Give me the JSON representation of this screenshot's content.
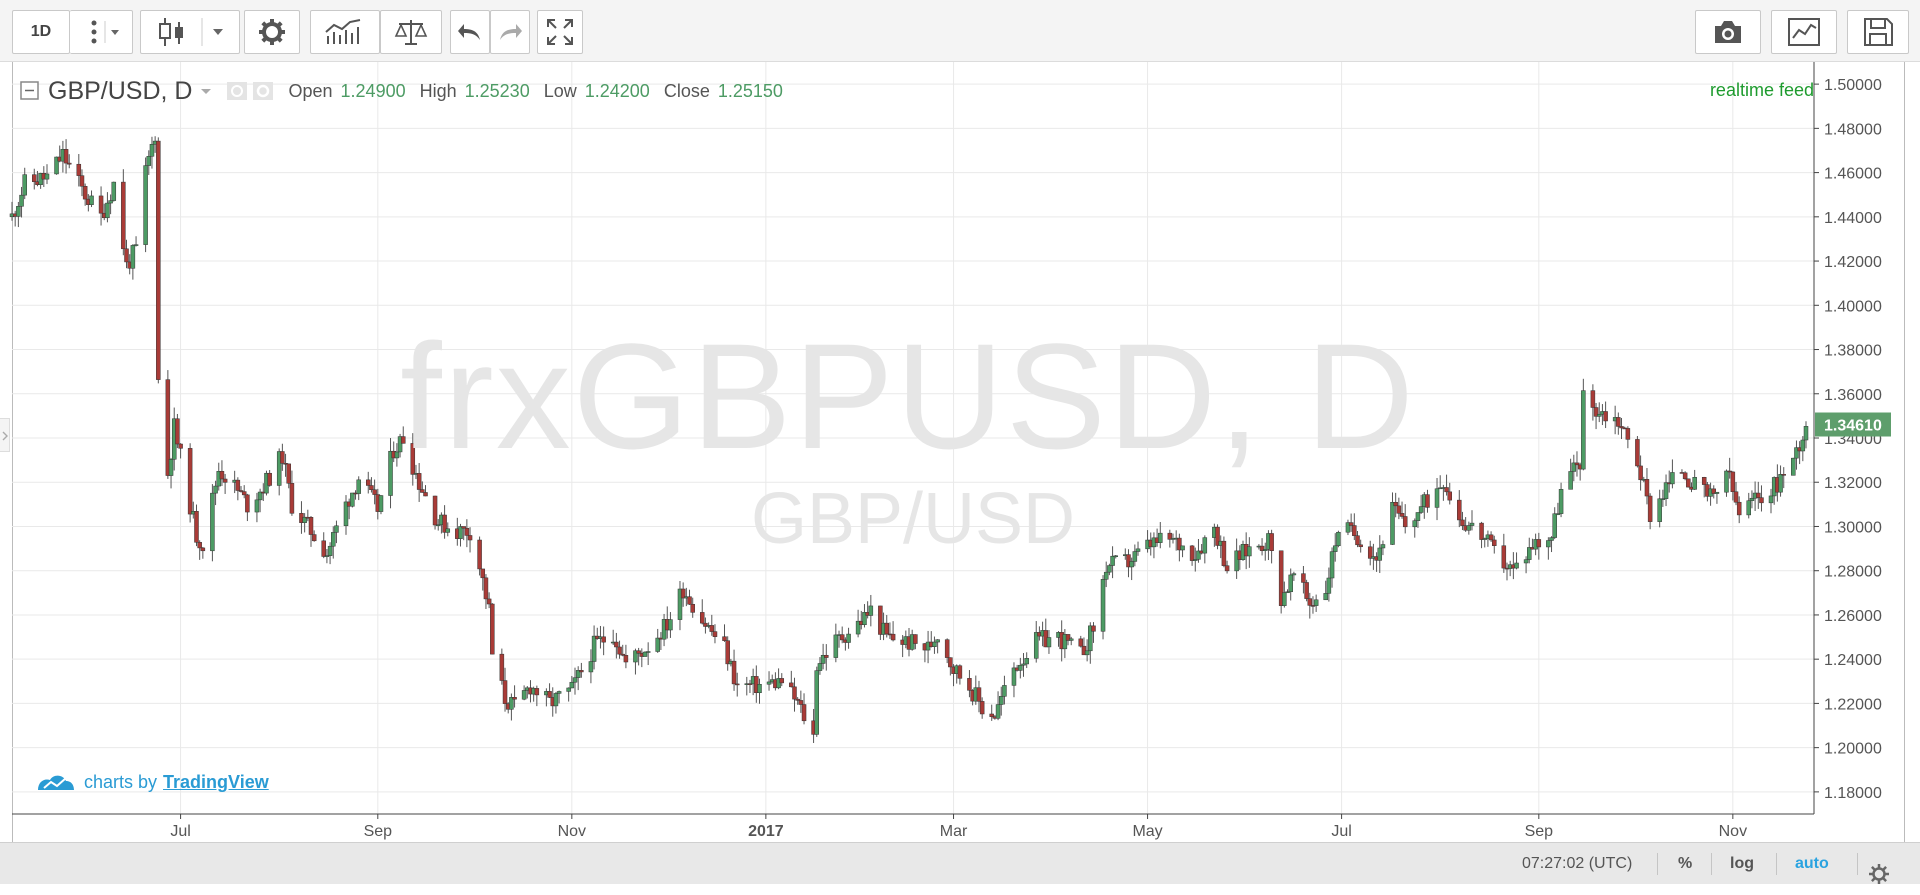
{
  "toolbar": {
    "interval_label": "1D",
    "buttons": [
      "interval",
      "more",
      "chart-type",
      "settings",
      "indicators",
      "compare",
      "undo",
      "redo",
      "fullscreen",
      "snapshot",
      "publish",
      "save"
    ]
  },
  "legend": {
    "symbol": "GBP/USD, D",
    "open_label": "Open",
    "open_value": "1.24900",
    "high_label": "High",
    "high_value": "1.25230",
    "low_label": "Low",
    "low_value": "1.24200",
    "close_label": "Close",
    "close_value": "1.25150"
  },
  "realtime_label": "realtime feed",
  "watermark": {
    "main": "frxGBPUSD, D",
    "sub": "GBP/USD"
  },
  "credit": {
    "prefix": "charts by",
    "link": "TradingView"
  },
  "bottom_bar": {
    "time": "07:27:02 (UTC)",
    "percent": "%",
    "log": "log",
    "auto": "auto"
  },
  "colors": {
    "up": "#4d9b64",
    "down": "#a93b37",
    "price_badge": "#5e9e6c",
    "auto_active": "#2aa3e0"
  },
  "chart_data": {
    "type": "candlestick",
    "title": "",
    "ylim": [
      1.17,
      1.51
    ],
    "y_ticks": [
      1.18,
      1.2,
      1.22,
      1.24,
      1.26,
      1.28,
      1.3,
      1.32,
      1.34,
      1.36,
      1.38,
      1.4,
      1.42,
      1.44,
      1.46,
      1.48,
      1.5
    ],
    "y_tick_labels": [
      "1.18000",
      "1.20000",
      "1.22000",
      "1.24000",
      "1.26000",
      "1.28000",
      "1.30000",
      "1.32000",
      "1.34000",
      "1.36000",
      "1.38000",
      "1.40000",
      "1.42000",
      "1.44000",
      "1.46000",
      "1.48000",
      "1.50000"
    ],
    "x_range": [
      "2016-05-09",
      "2017-11-24"
    ],
    "x_ticks": [
      {
        "date": "2016-07-01",
        "label": "Jul",
        "bold": false
      },
      {
        "date": "2016-09-01",
        "label": "Sep",
        "bold": false
      },
      {
        "date": "2016-11-01",
        "label": "Nov",
        "bold": false
      },
      {
        "date": "2017-01-01",
        "label": "2017",
        "bold": true
      },
      {
        "date": "2017-03-01",
        "label": "Mar",
        "bold": false
      },
      {
        "date": "2017-05-01",
        "label": "May",
        "bold": false
      },
      {
        "date": "2017-07-01",
        "label": "Jul",
        "bold": false
      },
      {
        "date": "2017-09-01",
        "label": "Sep",
        "bold": false
      },
      {
        "date": "2017-11-01",
        "label": "Nov",
        "bold": false
      }
    ],
    "last_price_label": "1.34610",
    "last_price": 1.3461,
    "close_path": [
      [
        "2016-05-09",
        1.44
      ],
      [
        "2016-05-13",
        1.455
      ],
      [
        "2016-05-20",
        1.458
      ],
      [
        "2016-05-25",
        1.468
      ],
      [
        "2016-06-01",
        1.45
      ],
      [
        "2016-06-06",
        1.44
      ],
      [
        "2016-06-10",
        1.455
      ],
      [
        "2016-06-14",
        1.418
      ],
      [
        "2016-06-17",
        1.425
      ],
      [
        "2016-06-20",
        1.46
      ],
      [
        "2016-06-23",
        1.478
      ],
      [
        "2016-06-24",
        1.366
      ],
      [
        "2016-06-27",
        1.324
      ],
      [
        "2016-06-29",
        1.345
      ],
      [
        "2016-07-06",
        1.296
      ],
      [
        "2016-07-08",
        1.292
      ],
      [
        "2016-07-13",
        1.326
      ],
      [
        "2016-07-18",
        1.318
      ],
      [
        "2016-07-22",
        1.31
      ],
      [
        "2016-07-27",
        1.318
      ],
      [
        "2016-08-02",
        1.332
      ],
      [
        "2016-08-05",
        1.31
      ],
      [
        "2016-08-10",
        1.3
      ],
      [
        "2016-08-16",
        1.288
      ],
      [
        "2016-08-22",
        1.31
      ],
      [
        "2016-08-26",
        1.322
      ],
      [
        "2016-09-01",
        1.308
      ],
      [
        "2016-09-06",
        1.335
      ],
      [
        "2016-09-09",
        1.34
      ],
      [
        "2016-09-14",
        1.32
      ],
      [
        "2016-09-20",
        1.302
      ],
      [
        "2016-09-26",
        1.298
      ],
      [
        "2016-09-30",
        1.298
      ],
      [
        "2016-10-03",
        1.282
      ],
      [
        "2016-10-06",
        1.262
      ],
      [
        "2016-10-07",
        1.242
      ],
      [
        "2016-10-11",
        1.222
      ],
      [
        "2016-10-14",
        1.218
      ],
      [
        "2016-10-19",
        1.228
      ],
      [
        "2016-10-25",
        1.22
      ],
      [
        "2016-11-01",
        1.226
      ],
      [
        "2016-11-08",
        1.246
      ],
      [
        "2016-11-14",
        1.252
      ],
      [
        "2016-11-18",
        1.238
      ],
      [
        "2016-11-25",
        1.246
      ],
      [
        "2016-12-01",
        1.256
      ],
      [
        "2016-12-06",
        1.272
      ],
      [
        "2016-12-12",
        1.258
      ],
      [
        "2016-12-19",
        1.245
      ],
      [
        "2016-12-23",
        1.228
      ],
      [
        "2016-12-29",
        1.228
      ],
      [
        "2017-01-06",
        1.23
      ],
      [
        "2017-01-11",
        1.22
      ],
      [
        "2017-01-16",
        1.205
      ],
      [
        "2017-01-17",
        1.238
      ],
      [
        "2017-01-23",
        1.248
      ],
      [
        "2017-01-30",
        1.256
      ],
      [
        "2017-02-03",
        1.262
      ],
      [
        "2017-02-08",
        1.25
      ],
      [
        "2017-02-14",
        1.248
      ],
      [
        "2017-02-21",
        1.245
      ],
      [
        "2017-02-24",
        1.252
      ],
      [
        "2017-03-01",
        1.236
      ],
      [
        "2017-03-06",
        1.228
      ],
      [
        "2017-03-10",
        1.218
      ],
      [
        "2017-03-14",
        1.215
      ],
      [
        "2017-03-20",
        1.236
      ],
      [
        "2017-03-27",
        1.248
      ],
      [
        "2017-04-03",
        1.25
      ],
      [
        "2017-04-10",
        1.242
      ],
      [
        "2017-04-14",
        1.254
      ],
      [
        "2017-04-18",
        1.282
      ],
      [
        "2017-04-25",
        1.284
      ],
      [
        "2017-05-02",
        1.292
      ],
      [
        "2017-05-08",
        1.294
      ],
      [
        "2017-05-16",
        1.288
      ],
      [
        "2017-05-22",
        1.3
      ],
      [
        "2017-05-26",
        1.282
      ],
      [
        "2017-06-02",
        1.29
      ],
      [
        "2017-06-08",
        1.294
      ],
      [
        "2017-06-12",
        1.268
      ],
      [
        "2017-06-16",
        1.278
      ],
      [
        "2017-06-21",
        1.265
      ],
      [
        "2017-06-26",
        1.272
      ],
      [
        "2017-06-30",
        1.3
      ],
      [
        "2017-07-06",
        1.296
      ],
      [
        "2017-07-12",
        1.286
      ],
      [
        "2017-07-17",
        1.308
      ],
      [
        "2017-07-21",
        1.3
      ],
      [
        "2017-07-27",
        1.31
      ],
      [
        "2017-08-02",
        1.322
      ],
      [
        "2017-08-07",
        1.304
      ],
      [
        "2017-08-14",
        1.296
      ],
      [
        "2017-08-18",
        1.288
      ],
      [
        "2017-08-24",
        1.28
      ],
      [
        "2017-08-30",
        1.292
      ],
      [
        "2017-09-05",
        1.296
      ],
      [
        "2017-09-08",
        1.316
      ],
      [
        "2017-09-14",
        1.33
      ],
      [
        "2017-09-15",
        1.358
      ],
      [
        "2017-09-20",
        1.352
      ],
      [
        "2017-09-26",
        1.348
      ],
      [
        "2017-10-02",
        1.33
      ],
      [
        "2017-10-06",
        1.306
      ],
      [
        "2017-10-11",
        1.318
      ],
      [
        "2017-10-16",
        1.326
      ],
      [
        "2017-10-20",
        1.318
      ],
      [
        "2017-10-26",
        1.312
      ],
      [
        "2017-10-30",
        1.326
      ],
      [
        "2017-11-03",
        1.305
      ],
      [
        "2017-11-08",
        1.312
      ],
      [
        "2017-11-14",
        1.318
      ],
      [
        "2017-11-20",
        1.33
      ],
      [
        "2017-11-24",
        1.346
      ]
    ]
  }
}
